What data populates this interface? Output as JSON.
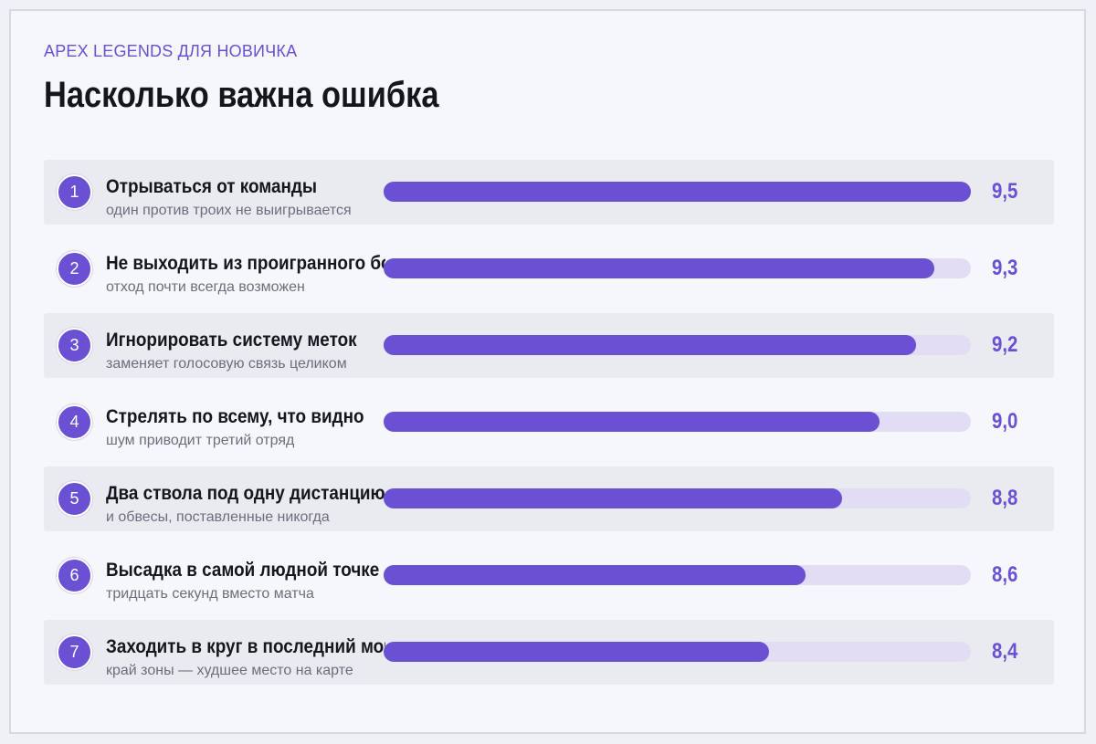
{
  "header": {
    "eyebrow": "APEX LEGENDS ДЛЯ НОВИЧКА",
    "title": "Насколько важна ошибка"
  },
  "colors": {
    "accent": "#6a50d3",
    "track": "#e2ddf5",
    "row_shade": "#e9ebf1"
  },
  "chart_data": {
    "type": "bar",
    "orientation": "horizontal",
    "title": "Насколько важна ошибка",
    "xlim": [
      0,
      9.5
    ],
    "categories": [
      "Отрываться от команды",
      "Не выходить из проигранного боя",
      "Игнорировать систему меток",
      "Стрелять по всему, что видно",
      "Два ствола под одну дистанцию",
      "Высадка в самой людной точке",
      "Заходить в круг в последний момент"
    ],
    "values": [
      9.5,
      9.3,
      9.2,
      9.0,
      8.8,
      8.6,
      8.4
    ],
    "value_labels": [
      "9,5",
      "9,3",
      "9,2",
      "9,0",
      "8,8",
      "8,6",
      "8,4"
    ],
    "subtitles": [
      "один против троих не выигрывается",
      "отход почти всегда возможен",
      "заменяет голосовую связь целиком",
      "шум приводит третий отряд",
      "и обвесы, поставленные никогда",
      "тридцать секунд вместо матча",
      "край зоны — худшее место на карте"
    ],
    "ranks": [
      "1",
      "2",
      "3",
      "4",
      "5",
      "6",
      "7"
    ]
  }
}
